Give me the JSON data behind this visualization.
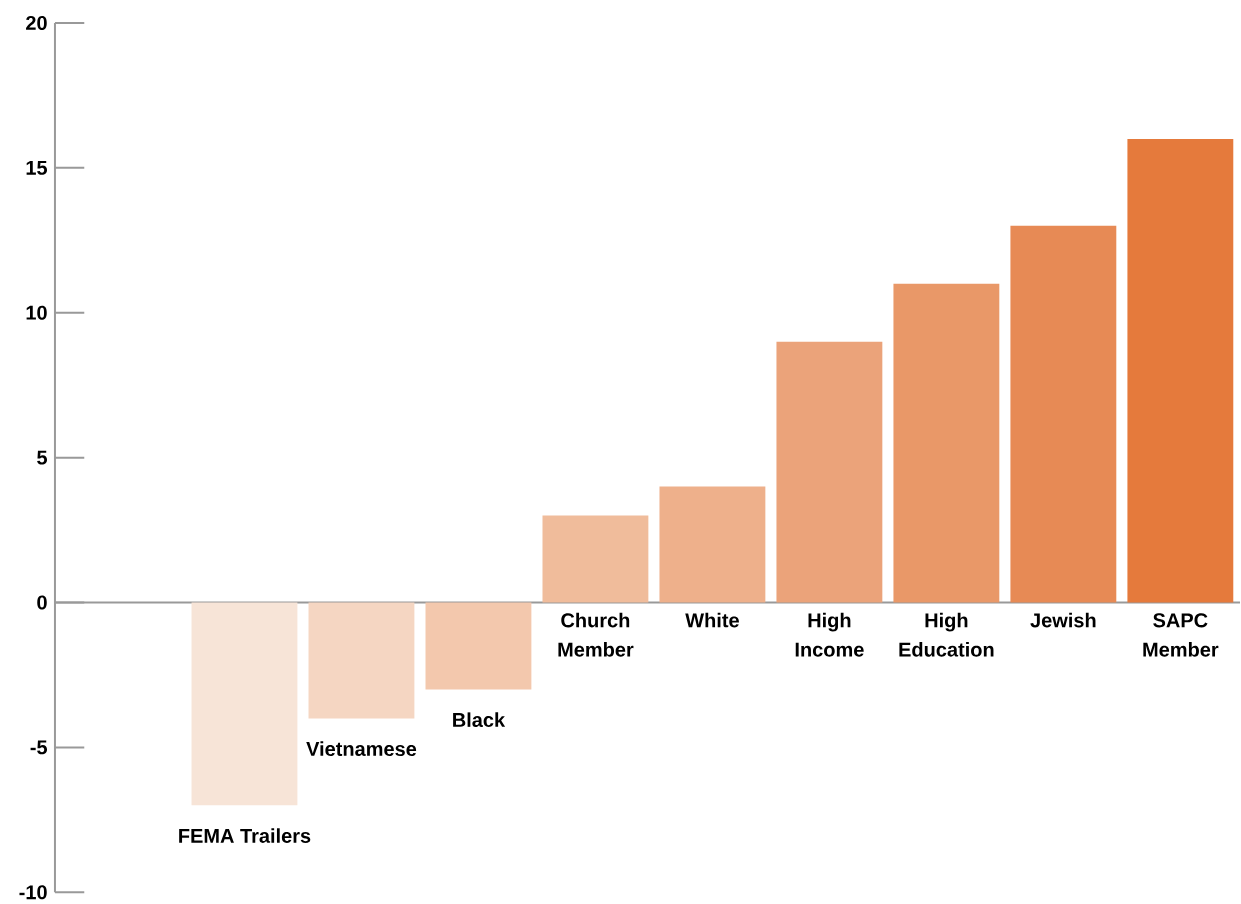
{
  "chart_data": {
    "type": "bar",
    "categories": [
      "FEMA Trailers",
      "Vietnamese",
      "Black",
      "Church Member",
      "White",
      "High Income",
      "High Education",
      "Jewish",
      "SAPC Member"
    ],
    "values": [
      -7,
      -4,
      -3,
      3,
      4,
      9,
      11,
      13,
      16
    ],
    "colors": [
      "#f7e4d7",
      "#f5d6c2",
      "#f3c8ad",
      "#f0bc9b",
      "#eeb08b",
      "#eba37a",
      "#e99868",
      "#e78a55",
      "#e57a3c"
    ],
    "ylim": [
      -10,
      20
    ],
    "yticks": [
      -10,
      -5,
      0,
      5,
      10,
      15,
      20
    ]
  }
}
